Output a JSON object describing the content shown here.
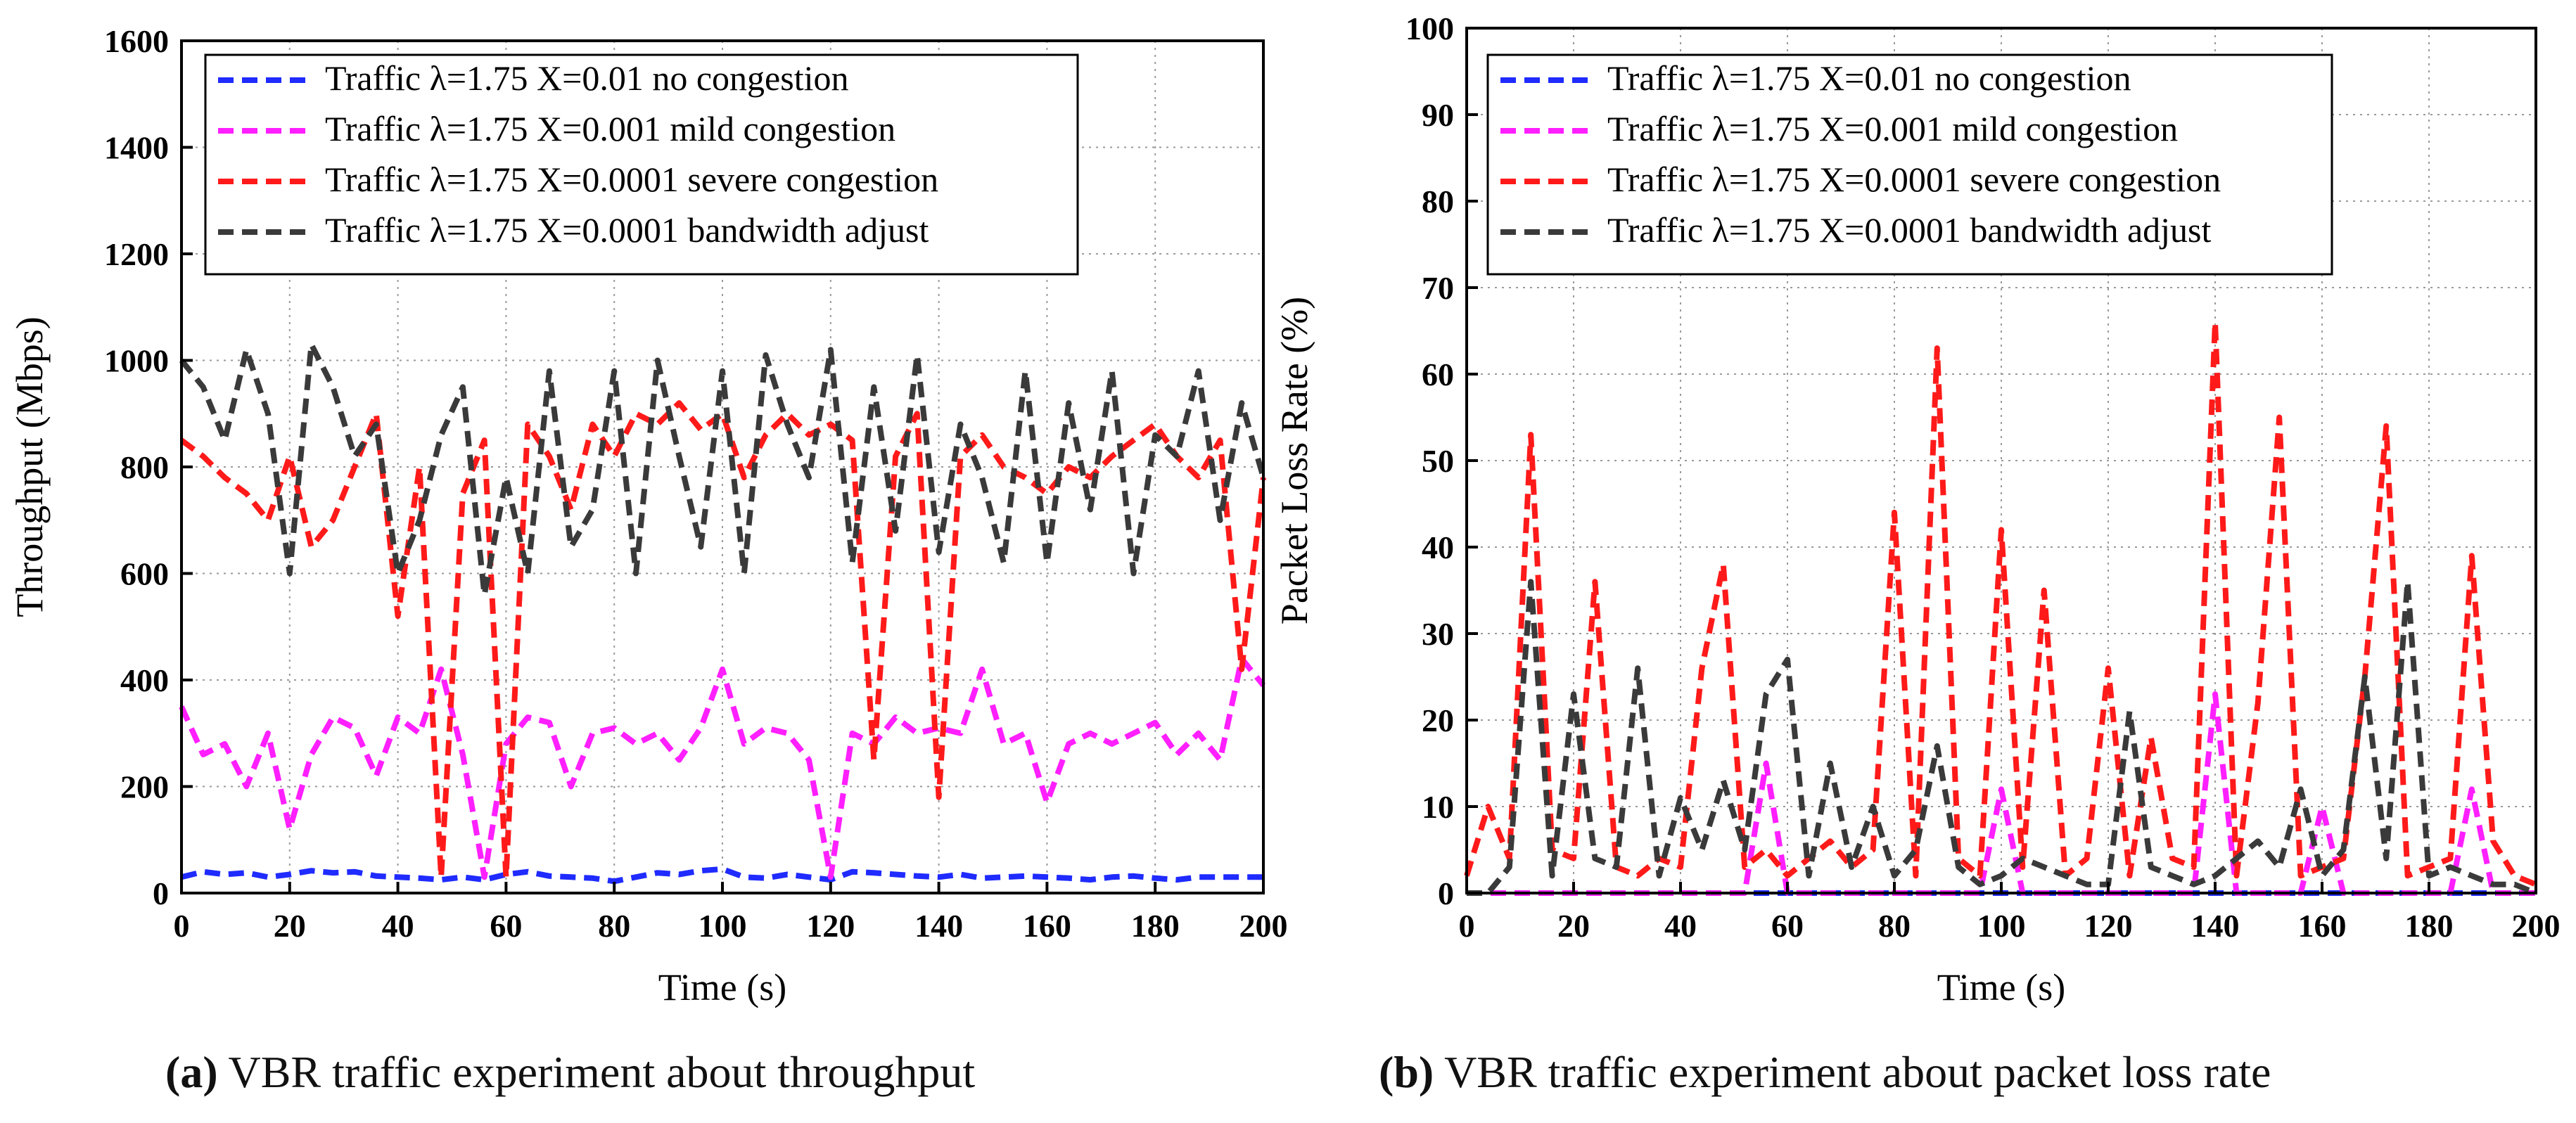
{
  "chart_data": [
    {
      "type": "line",
      "title": "",
      "xlabel": "Time (s)",
      "ylabel": "Throughput (Mbps)",
      "xlim": [
        0,
        200
      ],
      "ylim": [
        0,
        1600
      ],
      "xticks": [
        0,
        20,
        40,
        60,
        80,
        100,
        120,
        140,
        160,
        180,
        200
      ],
      "yticks": [
        0,
        200,
        400,
        600,
        800,
        1000,
        1200,
        1400,
        1600
      ],
      "grid": true,
      "legend_position": "top-left",
      "x": [
        0,
        4,
        8,
        12,
        16,
        20,
        24,
        28,
        32,
        36,
        40,
        44,
        48,
        52,
        56,
        60,
        64,
        68,
        72,
        76,
        80,
        84,
        88,
        92,
        96,
        100,
        104,
        108,
        112,
        116,
        120,
        124,
        128,
        132,
        136,
        140,
        144,
        148,
        152,
        156,
        160,
        164,
        168,
        172,
        176,
        180,
        184,
        188,
        192,
        196,
        200
      ],
      "series": [
        {
          "name": "Traffic λ=1.75 X=0.01 no congestion",
          "color": "#1f2bff",
          "values": [
            30,
            40,
            35,
            38,
            30,
            35,
            42,
            38,
            40,
            32,
            30,
            28,
            25,
            30,
            25,
            35,
            40,
            32,
            30,
            28,
            22,
            30,
            38,
            35,
            42,
            45,
            30,
            28,
            35,
            30,
            25,
            40,
            38,
            35,
            32,
            30,
            35,
            28,
            30,
            32,
            30,
            28,
            25,
            30,
            32,
            28,
            25,
            30,
            30,
            30,
            30
          ]
        },
        {
          "name": "Traffic λ=1.75 X=0.001 mild congestion",
          "color": "#ff1fff",
          "values": [
            350,
            260,
            280,
            200,
            300,
            120,
            260,
            330,
            310,
            220,
            330,
            300,
            420,
            260,
            30,
            280,
            330,
            320,
            200,
            300,
            310,
            280,
            300,
            250,
            310,
            420,
            280,
            310,
            300,
            250,
            30,
            300,
            280,
            330,
            300,
            310,
            300,
            420,
            280,
            300,
            170,
            280,
            300,
            280,
            300,
            320,
            260,
            300,
            250,
            440,
            390
          ]
        },
        {
          "name": "Traffic λ=1.75 X=0.0001 severe congestion",
          "color": "#ff1a1a",
          "values": [
            850,
            820,
            780,
            750,
            700,
            820,
            650,
            700,
            800,
            900,
            520,
            800,
            30,
            750,
            850,
            30,
            880,
            820,
            720,
            880,
            820,
            900,
            880,
            920,
            870,
            900,
            780,
            860,
            900,
            860,
            880,
            850,
            250,
            820,
            900,
            180,
            820,
            860,
            800,
            780,
            750,
            800,
            780,
            820,
            850,
            880,
            820,
            780,
            850,
            420,
            780
          ]
        },
        {
          "name": "Traffic λ=1.75 X=0.0001 bandwidth adjust",
          "color": "#3a3a3a",
          "values": [
            1000,
            950,
            850,
            1020,
            900,
            600,
            1030,
            950,
            820,
            880,
            600,
            700,
            860,
            950,
            560,
            780,
            600,
            980,
            650,
            720,
            980,
            600,
            1000,
            820,
            650,
            980,
            600,
            1010,
            880,
            780,
            1020,
            620,
            950,
            680,
            1010,
            640,
            880,
            780,
            620,
            980,
            620,
            920,
            720,
            980,
            600,
            860,
            820,
            980,
            700,
            920,
            780
          ]
        }
      ]
    },
    {
      "type": "line",
      "title": "",
      "xlabel": "Time (s)",
      "ylabel": "Packet Loss Rate (%)",
      "xlim": [
        0,
        200
      ],
      "ylim": [
        0,
        100
      ],
      "xticks": [
        0,
        20,
        40,
        60,
        80,
        100,
        120,
        140,
        160,
        180,
        200
      ],
      "yticks": [
        0,
        10,
        20,
        30,
        40,
        50,
        60,
        70,
        80,
        90,
        100
      ],
      "grid": true,
      "legend_position": "top-left",
      "x": [
        0,
        4,
        8,
        12,
        16,
        20,
        24,
        28,
        32,
        36,
        40,
        44,
        48,
        52,
        56,
        60,
        64,
        68,
        72,
        76,
        80,
        84,
        88,
        92,
        96,
        100,
        104,
        108,
        112,
        116,
        120,
        124,
        128,
        132,
        136,
        140,
        144,
        148,
        152,
        156,
        160,
        164,
        168,
        172,
        176,
        180,
        184,
        188,
        192,
        196,
        200
      ],
      "series": [
        {
          "name": "Traffic λ=1.75 X=0.01 no congestion",
          "color": "#1f2bff",
          "values": [
            0,
            0,
            0,
            0,
            0,
            0,
            0,
            0,
            0,
            0,
            0,
            0,
            0,
            0,
            0,
            0,
            0,
            0,
            0,
            0,
            0,
            0,
            0,
            0,
            0,
            0,
            0,
            0,
            0,
            0,
            0,
            0,
            0,
            0,
            0,
            0,
            0,
            0,
            0,
            0,
            0,
            0,
            0,
            0,
            0,
            0,
            0,
            0,
            0,
            0,
            0
          ]
        },
        {
          "name": "Traffic λ=1.75 X=0.001 mild congestion",
          "color": "#ff1fff",
          "values": [
            0,
            0,
            0,
            0,
            0,
            0,
            0,
            0,
            0,
            0,
            0,
            0,
            0,
            0,
            15,
            0,
            0,
            0,
            0,
            0,
            0,
            0,
            0,
            0,
            0,
            12,
            0,
            0,
            0,
            0,
            0,
            0,
            0,
            0,
            0,
            23,
            0,
            0,
            0,
            0,
            10,
            0,
            0,
            0,
            0,
            0,
            0,
            12,
            0,
            0,
            0
          ]
        },
        {
          "name": "Traffic λ=1.75 X=0.0001 severe congestion",
          "color": "#ff1a1a",
          "values": [
            2,
            10,
            4,
            53,
            5,
            4,
            36,
            3,
            2,
            4,
            3,
            26,
            38,
            3,
            5,
            2,
            4,
            6,
            3,
            5,
            44,
            2,
            63,
            4,
            2,
            42,
            3,
            35,
            2,
            4,
            26,
            2,
            18,
            4,
            3,
            66,
            2,
            22,
            55,
            2,
            3,
            4,
            25,
            54,
            2,
            3,
            4,
            39,
            6,
            2,
            1
          ]
        },
        {
          "name": "Traffic λ=1.75 X=0.0001 bandwidth adjust",
          "color": "#3a3a3a",
          "values": [
            0,
            0,
            3,
            36,
            2,
            23,
            4,
            3,
            26,
            2,
            11,
            5,
            13,
            5,
            23,
            27,
            2,
            15,
            3,
            10,
            2,
            5,
            17,
            3,
            1,
            2,
            4,
            3,
            2,
            1,
            1,
            21,
            3,
            2,
            1,
            2,
            4,
            6,
            3,
            12,
            2,
            5,
            25,
            4,
            36,
            2,
            3,
            2,
            1,
            1,
            0
          ]
        }
      ]
    }
  ],
  "captions": {
    "a_letter": "(a)",
    "a_text": " VBR traffic experiment about throughput",
    "b_letter": "(b)",
    "b_text": " VBR traffic experiment about packet loss rate"
  }
}
